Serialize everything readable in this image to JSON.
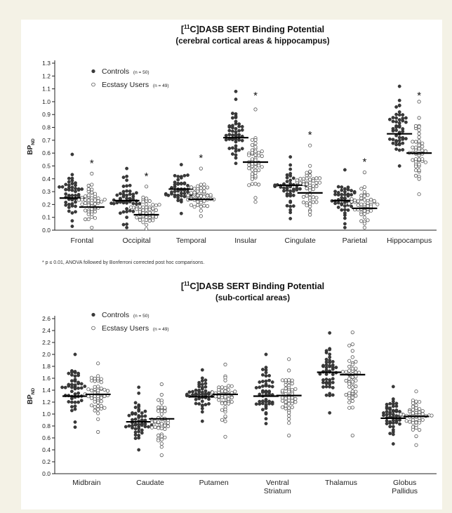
{
  "chart_data": [
    {
      "type": "scatter",
      "title_prefix": "[",
      "title_superscript": "11",
      "title_main": "C]DASB SERT Binding Potential",
      "subtitle": "(cerebral cortical areas & hippocampus)",
      "ylabel_main": "BP",
      "ylabel_sub": "ND",
      "ylim": [
        0,
        1.3
      ],
      "yticks": [
        "0.0",
        "0.1",
        "0.2",
        "0.3",
        "0.4",
        "0.5",
        "0.6",
        "0.7",
        "0.8",
        "0.9",
        "1.0",
        "1.1",
        "1.2",
        "1.3"
      ],
      "categories": [
        "Frontal",
        "Occipital",
        "Temporal",
        "Insular",
        "Cingulate",
        "Parietal",
        "Hippocampus"
      ],
      "legend": [
        {
          "name": "Controls",
          "n": "(n = 50)",
          "marker": "filled"
        },
        {
          "name": "Ecstasy Users",
          "n": "(n = 49)",
          "marker": "open"
        }
      ],
      "series": [
        {
          "name": "Controls",
          "means": [
            0.25,
            0.23,
            0.32,
            0.72,
            0.35,
            0.23,
            0.75
          ],
          "ranges": [
            [
              0.03,
              0.59
            ],
            [
              0.02,
              0.48
            ],
            [
              0.13,
              0.51
            ],
            [
              0.52,
              1.08
            ],
            [
              0.09,
              0.57
            ],
            [
              0.02,
              0.47
            ],
            [
              0.5,
              1.12
            ]
          ]
        },
        {
          "name": "Ecstasy Users",
          "means": [
            0.18,
            0.12,
            0.24,
            0.53,
            0.29,
            0.17,
            0.6
          ],
          "ranges": [
            [
              0.02,
              0.44
            ],
            [
              0.01,
              0.34
            ],
            [
              0.11,
              0.48
            ],
            [
              0.22,
              0.94
            ],
            [
              0.12,
              0.66
            ],
            [
              0.02,
              0.45
            ],
            [
              0.28,
              1.0
            ]
          ]
        }
      ],
      "significant": [
        true,
        true,
        true,
        true,
        true,
        true,
        true
      ],
      "significance_marker": "*",
      "footnote": "* p ≤ 0.01, ANOVA followed by Bonferroni corrected post hoc comparisons."
    },
    {
      "type": "scatter",
      "title_prefix": "[",
      "title_superscript": "11",
      "title_main": "C]DASB SERT Binding Potential",
      "subtitle": "(sub-cortical areas)",
      "ylabel_main": "BP",
      "ylabel_sub": "ND",
      "ylim": [
        0,
        2.6
      ],
      "yticks": [
        "0.0",
        "0.2",
        "0.4",
        "0.6",
        "0.8",
        "1.0",
        "1.2",
        "1.4",
        "1.6",
        "1.8",
        "2.0",
        "2.2",
        "2.4",
        "2.6"
      ],
      "categories": [
        "Midbrain",
        "Caudate",
        "Putamen",
        "Ventral Striatum",
        "Thalamus",
        "Globus Pallidus"
      ],
      "legend": [
        {
          "name": "Controls",
          "n": "(n = 50)",
          "marker": "filled"
        },
        {
          "name": "Ecstasy Users",
          "n": "(n = 49)",
          "marker": "open"
        }
      ],
      "series": [
        {
          "name": "Controls",
          "means": [
            1.3,
            0.87,
            1.29,
            1.3,
            1.7,
            0.93
          ],
          "ranges": [
            [
              0.78,
              2.0
            ],
            [
              0.4,
              1.45
            ],
            [
              0.88,
              1.74
            ],
            [
              0.84,
              2.0
            ],
            [
              1.02,
              2.36
            ],
            [
              0.5,
              1.46
            ]
          ]
        },
        {
          "name": "Ecstasy Users",
          "means": [
            1.33,
            0.92,
            1.33,
            1.31,
            1.66,
            0.96
          ],
          "ranges": [
            [
              0.7,
              1.85
            ],
            [
              0.31,
              1.5
            ],
            [
              0.62,
              1.83
            ],
            [
              0.64,
              1.92
            ],
            [
              0.64,
              2.37
            ],
            [
              0.48,
              1.38
            ]
          ]
        }
      ],
      "significant": [
        false,
        false,
        false,
        false,
        false,
        false
      ],
      "significance_marker": "*",
      "footnote": ""
    }
  ]
}
